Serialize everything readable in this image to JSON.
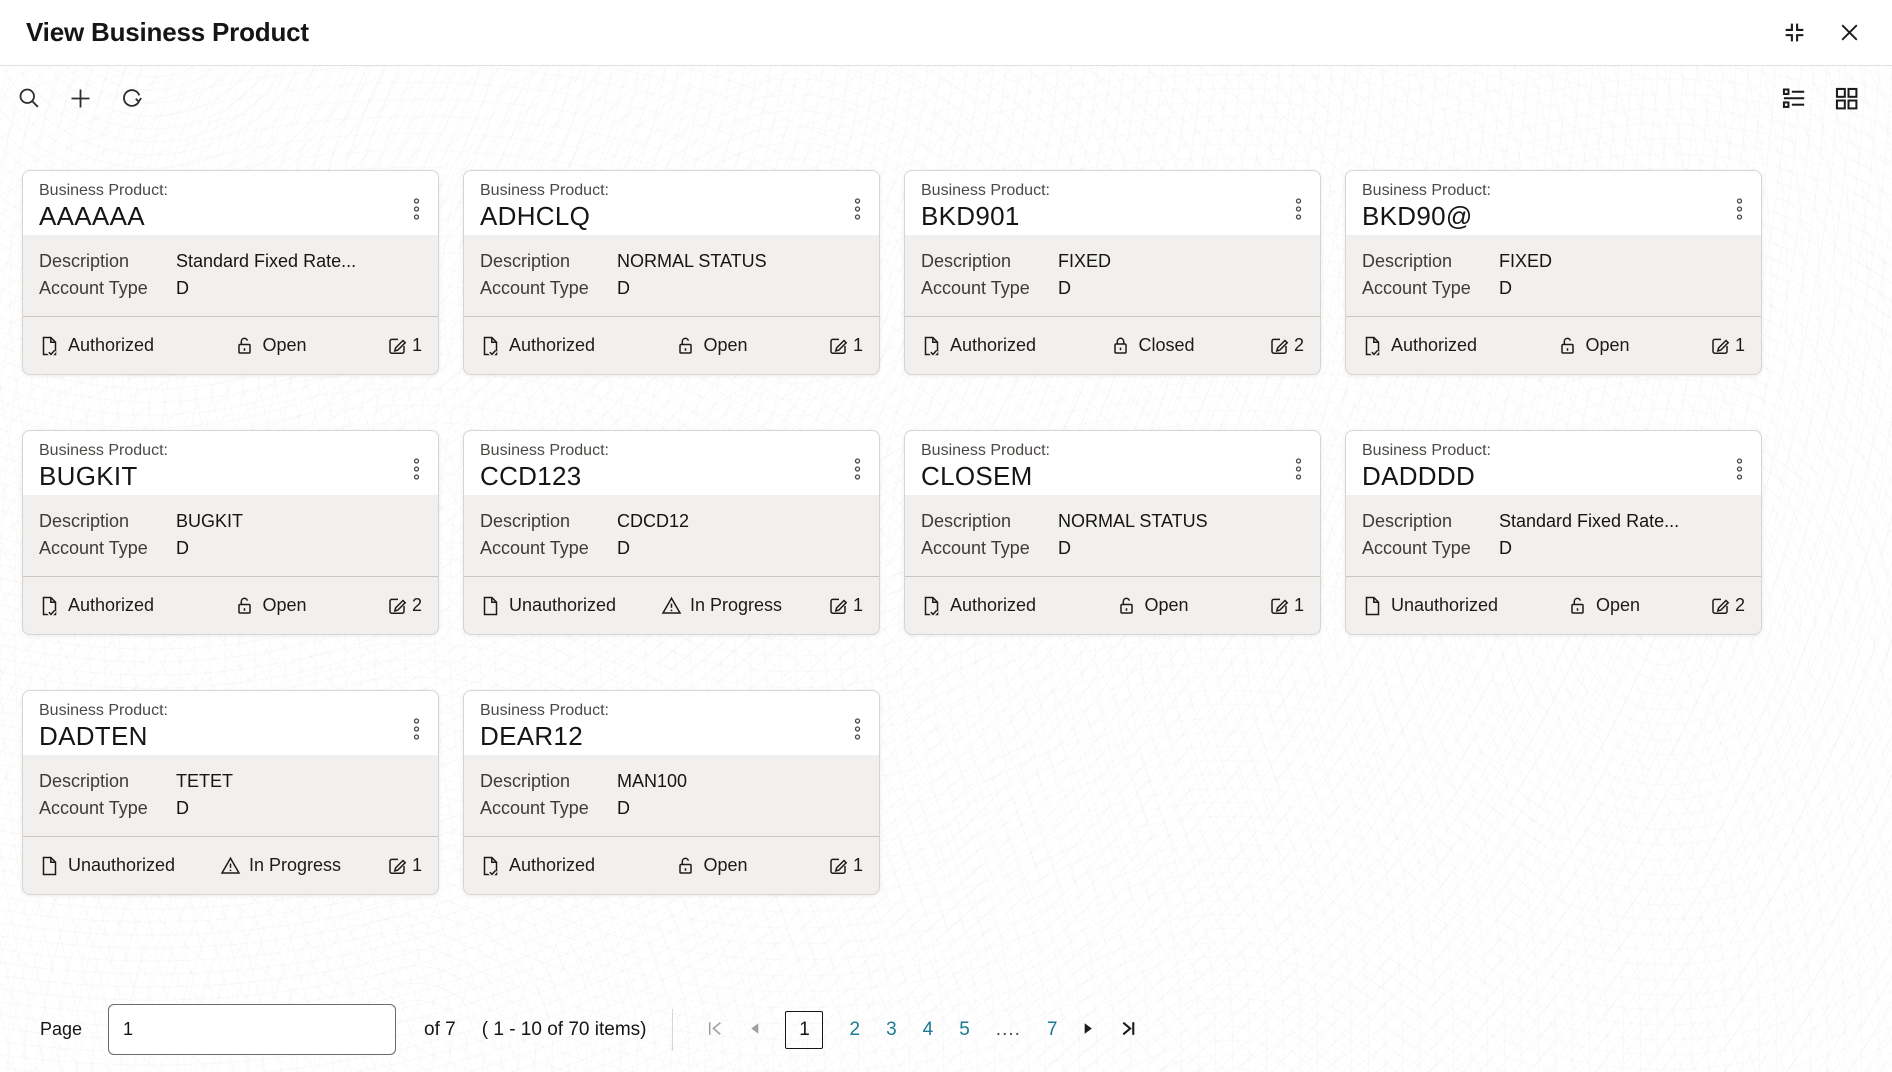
{
  "window": {
    "title": "View Business Product"
  },
  "card_labels": {
    "business_product": "Business Product:",
    "description": "Description",
    "account_type": "Account Type"
  },
  "cards": [
    {
      "name": "AAAAAA",
      "description": "Standard Fixed Rate...",
      "account_type": "D",
      "auth_status": "Authorized",
      "record_status": "Open",
      "edit_count": "1"
    },
    {
      "name": "ADHCLQ",
      "description": "NORMAL STATUS",
      "account_type": "D",
      "auth_status": "Authorized",
      "record_status": "Open",
      "edit_count": "1"
    },
    {
      "name": "BKD901",
      "description": "FIXED",
      "account_type": "D",
      "auth_status": "Authorized",
      "record_status": "Closed",
      "edit_count": "2"
    },
    {
      "name": "BKD90@",
      "description": "FIXED",
      "account_type": "D",
      "auth_status": "Authorized",
      "record_status": "Open",
      "edit_count": "1"
    },
    {
      "name": "BUGKIT",
      "description": "BUGKIT",
      "account_type": "D",
      "auth_status": "Authorized",
      "record_status": "Open",
      "edit_count": "2"
    },
    {
      "name": "CCD123",
      "description": "CDCD12",
      "account_type": "D",
      "auth_status": "Unauthorized",
      "record_status": "In Progress",
      "edit_count": "1"
    },
    {
      "name": "CLOSEM",
      "description": "NORMAL STATUS",
      "account_type": "D",
      "auth_status": "Authorized",
      "record_status": "Open",
      "edit_count": "1"
    },
    {
      "name": "DADDDD",
      "description": "Standard Fixed Rate...",
      "account_type": "D",
      "auth_status": "Unauthorized",
      "record_status": "Open",
      "edit_count": "2"
    },
    {
      "name": "DADTEN",
      "description": "TETET",
      "account_type": "D",
      "auth_status": "Unauthorized",
      "record_status": "In Progress",
      "edit_count": "1"
    },
    {
      "name": "DEAR12",
      "description": "MAN100",
      "account_type": "D",
      "auth_status": "Authorized",
      "record_status": "Open",
      "edit_count": "1"
    }
  ],
  "pagination": {
    "page_label": "Page",
    "page_input_value": "1",
    "of_label": "of 7",
    "items_summary": "( 1 - 10 of 70 items)",
    "current_page": "1",
    "pages": [
      "2",
      "3",
      "4",
      "5"
    ],
    "ellipsis": "....",
    "last_page": "7"
  },
  "icons": {
    "window_controls": [
      "collapse-icon",
      "close-icon"
    ],
    "toolbar_left": [
      "search-icon",
      "add-icon",
      "refresh-icon"
    ],
    "toolbar_right": [
      "list-view-icon",
      "grid-view-icon"
    ],
    "card": [
      "kebab-menu-icon",
      "document-check-icon",
      "document-icon",
      "lock-open-icon",
      "lock-closed-icon",
      "warning-triangle-icon",
      "edit-count-icon"
    ],
    "pagination": [
      "first-page-icon",
      "previous-page-icon",
      "next-page-icon",
      "last-page-icon"
    ]
  },
  "colors": {
    "link_teal": "#1a7b93",
    "text_dark": "#161513",
    "card_section_gray": "#f1f0ee",
    "disabled_gray": "#a3a09c"
  }
}
